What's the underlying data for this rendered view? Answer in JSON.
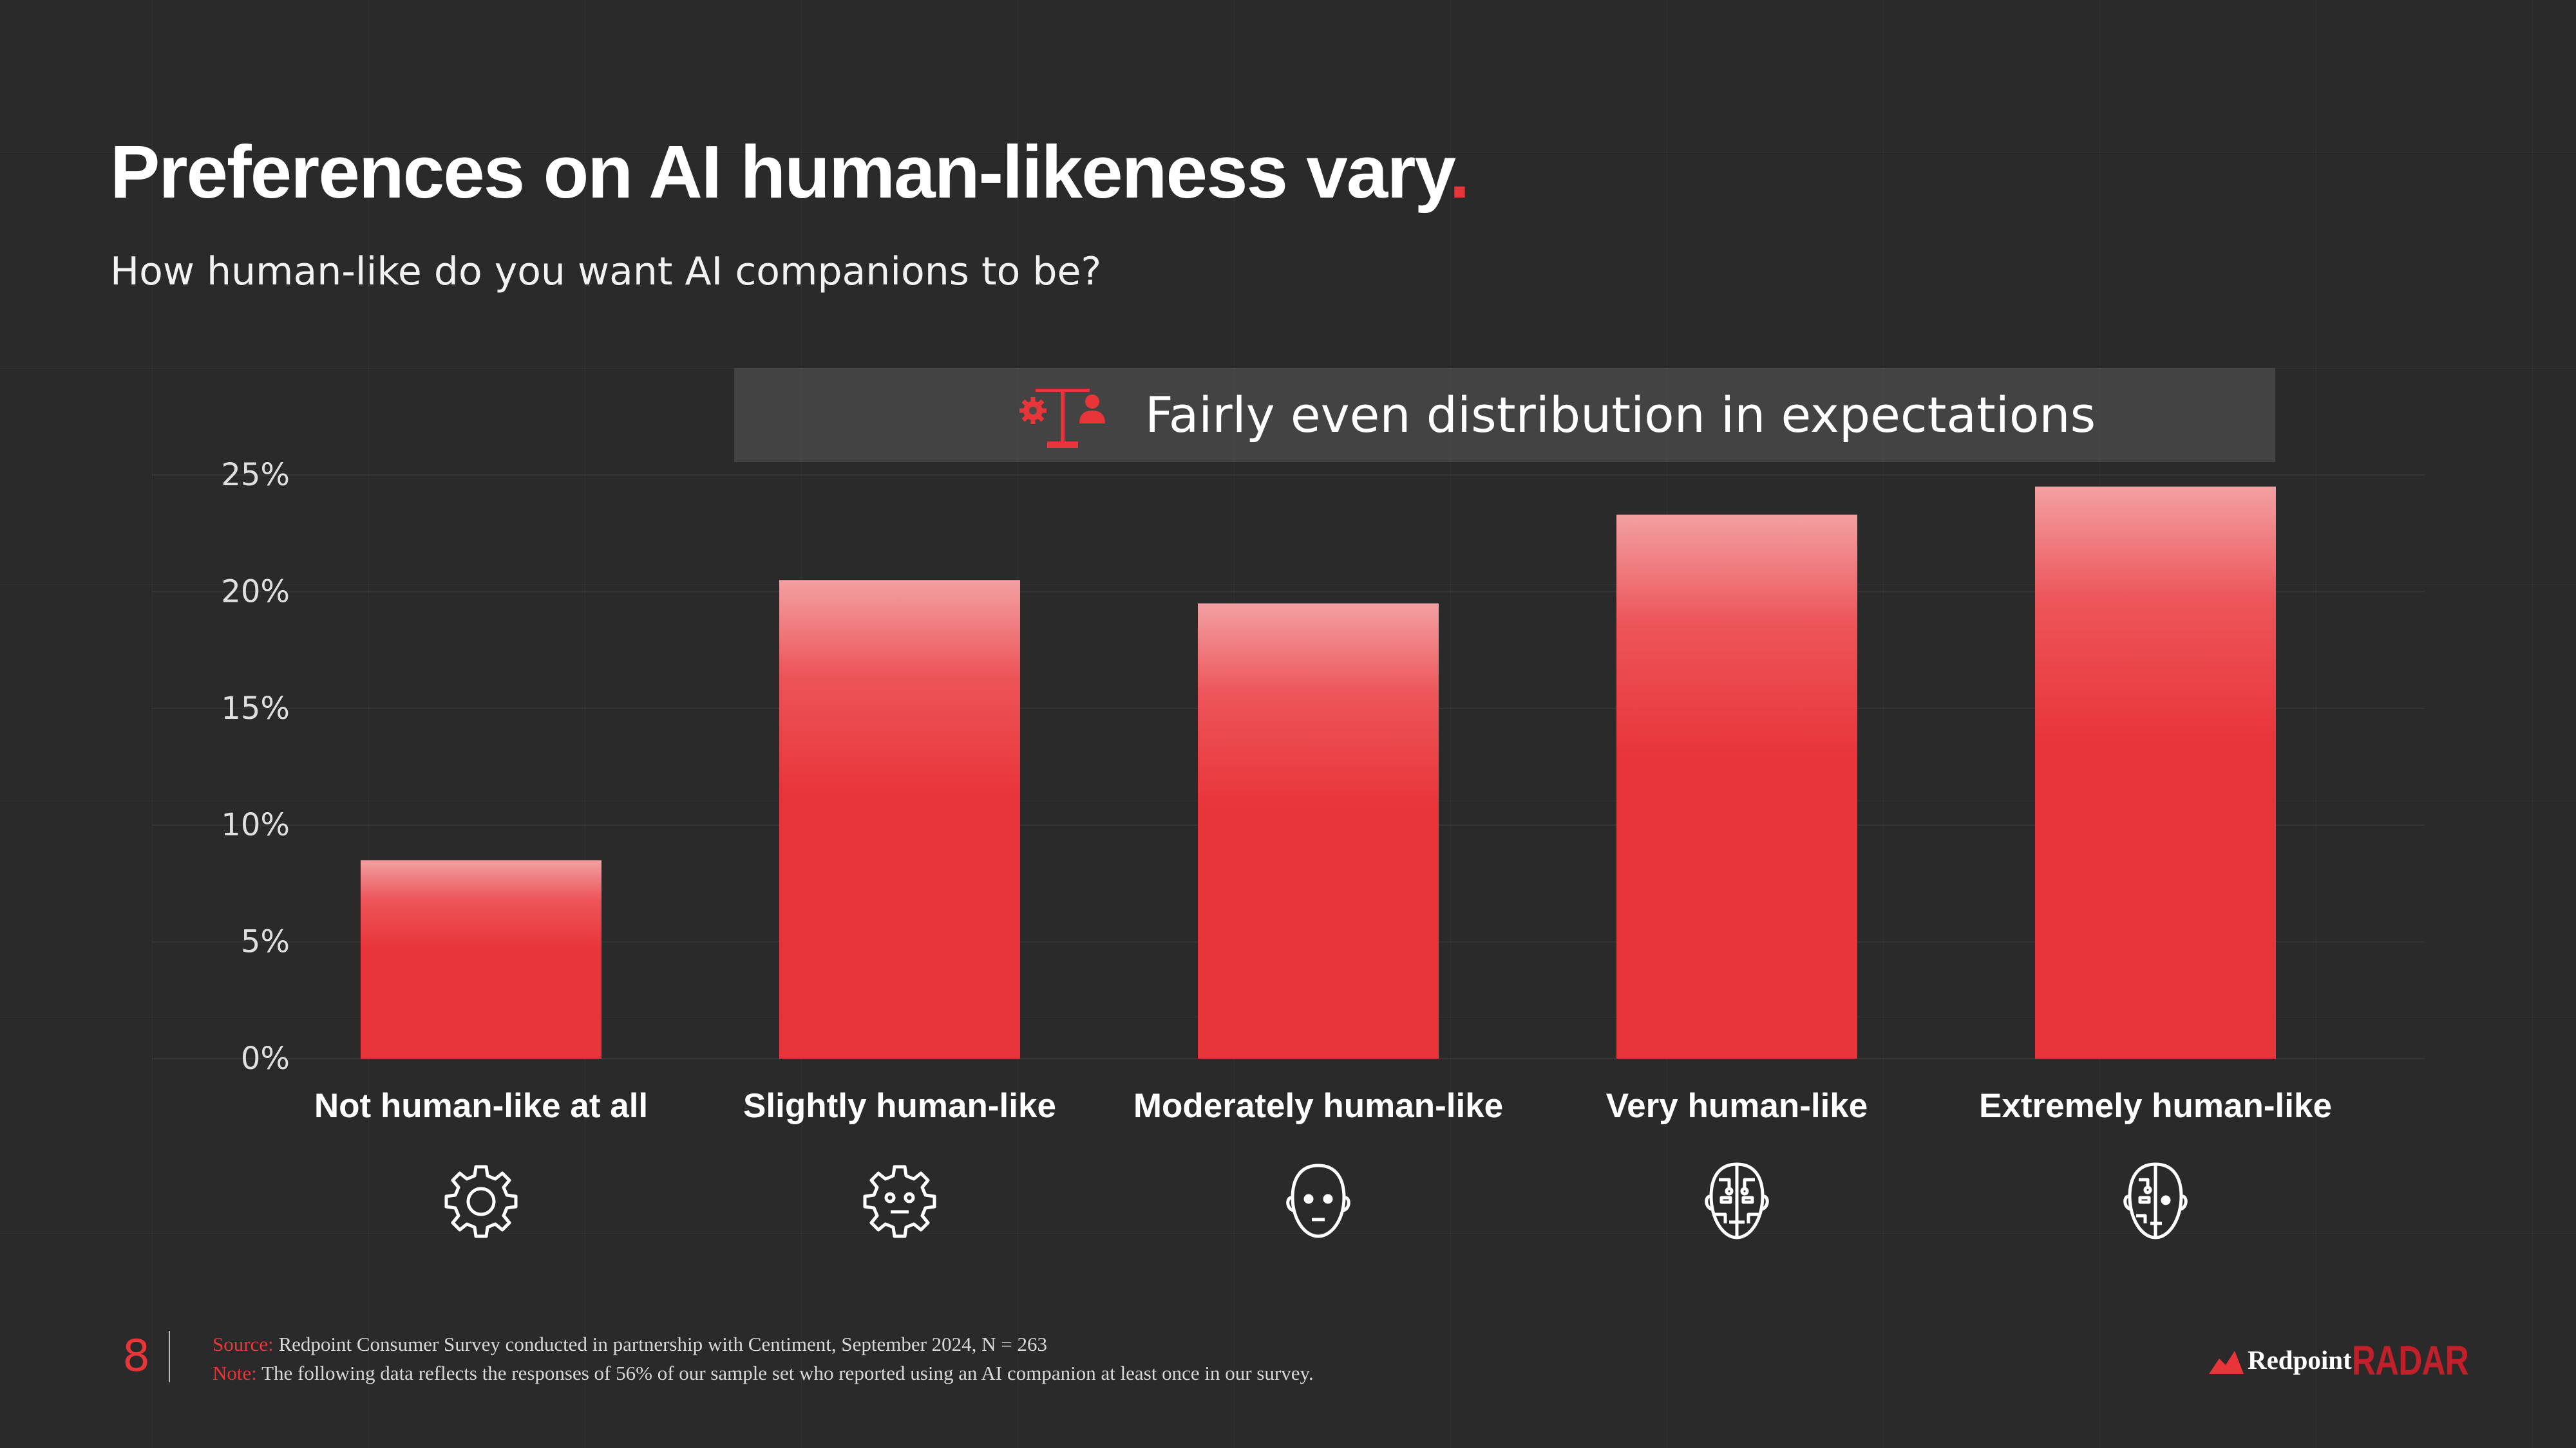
{
  "header": {
    "title": "Preferences on AI human-likeness vary",
    "title_dot": ".",
    "subtitle": "How human-like do you want AI companions to be?"
  },
  "callout": {
    "text": "Fairly even distribution in expectations",
    "icon": "balance-scale-gear-person-icon"
  },
  "chart_data": {
    "type": "bar",
    "categories": [
      "Not human-like at all",
      "Slightly human-like",
      "Moderately  human-like",
      "Very human-like",
      "Extremely human-like"
    ],
    "values": [
      8.5,
      20.5,
      19.5,
      23.3,
      24.5
    ],
    "category_icons": [
      "gear-icon",
      "gear-face-icon",
      "face-icon",
      "circuit-face-icon",
      "half-circuit-face-icon"
    ],
    "title": "",
    "xlabel": "",
    "ylabel": "",
    "ylim": [
      0,
      25
    ],
    "yticks": [
      0,
      5,
      10,
      15,
      20,
      25
    ],
    "ytick_labels": [
      "0%",
      "5%",
      "10%",
      "15%",
      "20%",
      "25%"
    ],
    "grid": true,
    "bar_color": "#e8353a"
  },
  "footer": {
    "page_number": "8",
    "source_label": "Source:",
    "source_text": " Redpoint Consumer Survey conducted in partnership with Centiment, September 2024, N = 263",
    "note_label": "Note:",
    "note_text": " The following data reflects the responses of 56% of our sample set who reported using an AI companion at least once in our survey.",
    "brand_name": "Redpoint",
    "brand_product": "RADAR"
  },
  "colors": {
    "background": "#2a2a2a",
    "accent": "#e8353a",
    "callout_bg": "#555555"
  }
}
